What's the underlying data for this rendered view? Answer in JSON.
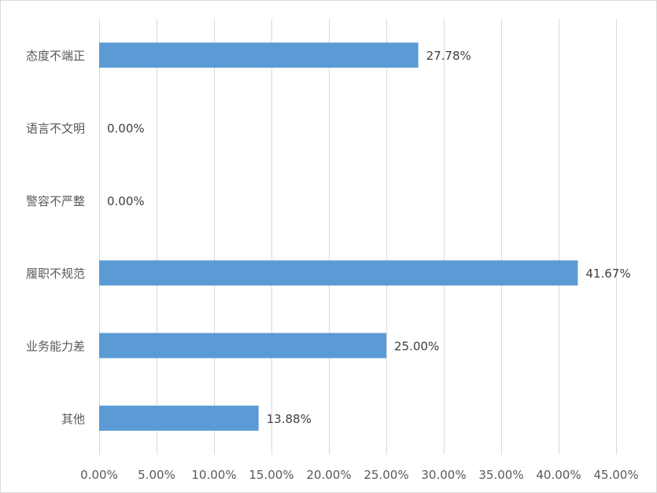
{
  "chart_data": {
    "type": "bar",
    "orientation": "horizontal",
    "categories": [
      "态度不端正",
      "语言不文明",
      "警容不严整",
      "履职不规范",
      "业务能力差",
      "其他"
    ],
    "values": [
      27.78,
      0.0,
      0.0,
      41.67,
      25.0,
      13.88
    ],
    "data_labels": [
      "27.78%",
      "0.00%",
      "0.00%",
      "41.67%",
      "25.00%",
      "13.88%"
    ],
    "x_ticks": [
      "0.00%",
      "5.00%",
      "10.00%",
      "15.00%",
      "20.00%",
      "25.00%",
      "30.00%",
      "35.00%",
      "40.00%",
      "45.00%"
    ],
    "xlim": [
      0,
      45
    ],
    "x_tick_step": 5,
    "grid": "vertical",
    "legend": "none",
    "bar_color": "#5b9bd5",
    "grid_color": "#d9d9d9"
  }
}
